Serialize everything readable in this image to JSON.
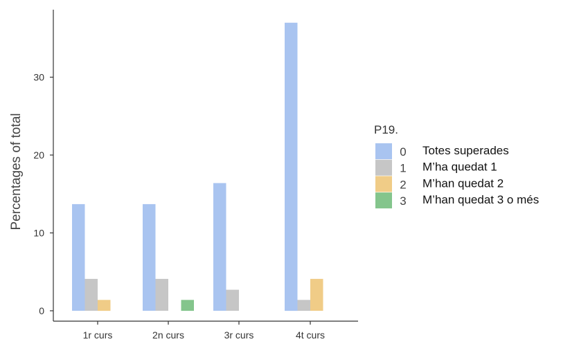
{
  "chart_data": {
    "type": "bar",
    "title": "",
    "xlabel": "",
    "ylabel": "Percentages of total",
    "categories": [
      "1r curs",
      "2n curs",
      "3r curs",
      "4t curs"
    ],
    "ylim": [
      0,
      38
    ],
    "yticks": [
      0,
      10,
      20,
      30
    ],
    "grid": false,
    "legend": {
      "position": "right",
      "title": "P19."
    },
    "series": [
      {
        "code": "0",
        "name": "Totes superades",
        "color": "#a9c4f0",
        "values": [
          13.7,
          13.7,
          16.4,
          37.0
        ]
      },
      {
        "code": "1",
        "name": "M’ha quedat 1",
        "color": "#c6c6c6",
        "values": [
          4.1,
          4.1,
          2.7,
          1.4
        ]
      },
      {
        "code": "2",
        "name": "M’han quedat 2",
        "color": "#f0cc87",
        "values": [
          1.4,
          0,
          0,
          4.1
        ]
      },
      {
        "code": "3",
        "name": "M’han quedat 3 o més",
        "color": "#84c58c",
        "values": [
          0,
          1.4,
          0,
          0
        ]
      }
    ]
  }
}
